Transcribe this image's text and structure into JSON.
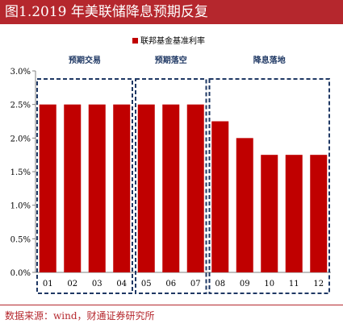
{
  "header": {
    "title": "图1.2019 年美联储降息预期反复"
  },
  "footer": {
    "source": "数据来源：wind，财通证券研究所"
  },
  "chart_data": {
    "type": "bar",
    "legend": "联邦基金基准利率",
    "legend_position": "top-center",
    "categories": [
      "01",
      "02",
      "03",
      "04",
      "05",
      "06",
      "07",
      "08",
      "09",
      "10",
      "11",
      "12"
    ],
    "series": [
      {
        "name": "联邦基金基准利率",
        "values": [
          2.5,
          2.5,
          2.5,
          2.5,
          2.5,
          2.5,
          2.5,
          2.25,
          2.0,
          1.75,
          1.75,
          1.75
        ]
      }
    ],
    "ylim": [
      0,
      3.0
    ],
    "yticks": [
      "0.0%",
      "0.5%",
      "1.0%",
      "1.5%",
      "2.0%",
      "2.5%",
      "3.0%"
    ],
    "grid": false,
    "groups": [
      {
        "label": "预期交易",
        "start": 0,
        "end": 3
      },
      {
        "label": "预期落空",
        "start": 4,
        "end": 6
      },
      {
        "label": "降息落地",
        "start": 7,
        "end": 11
      }
    ],
    "colors": {
      "bar": "#c00000",
      "group_box": "#1f3864",
      "title_bg": "#b5272d"
    }
  }
}
